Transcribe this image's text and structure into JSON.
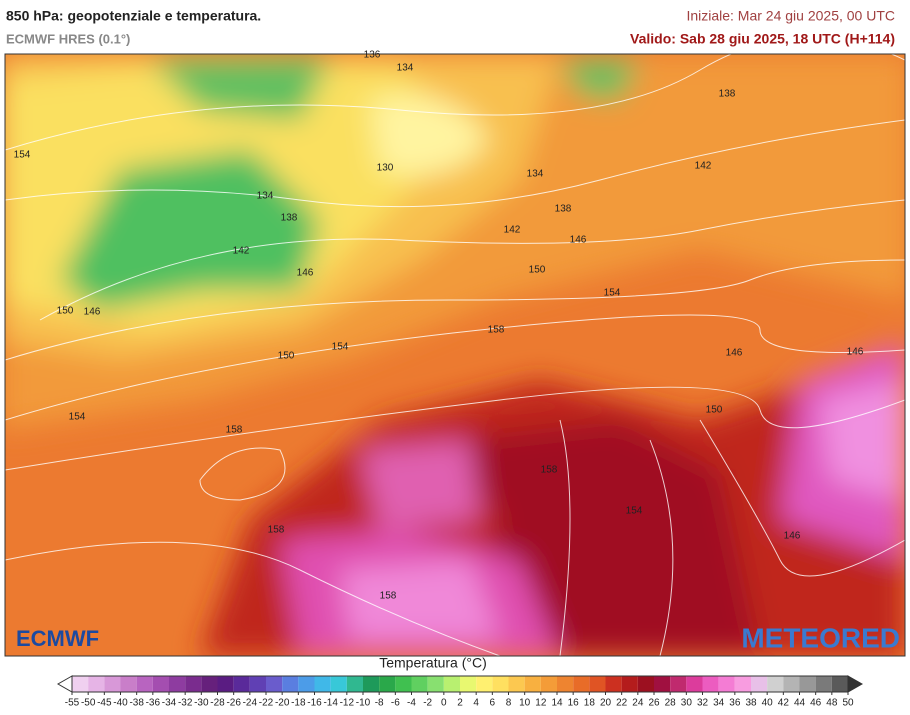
{
  "header": {
    "title": "850 hPa: geopotenziale e temperatura.",
    "model": "ECMWF HRES (0.1°)",
    "init": "Iniziale: Mar 24 giu 2025, 00 UTC",
    "valid": "Valido: Sab 28 giu 2025, 18 UTC (H+114)"
  },
  "map": {
    "contour_labels": [
      136,
      134,
      138,
      154,
      130,
      134,
      142,
      134,
      138,
      138,
      142,
      146,
      142,
      146,
      150,
      154,
      150,
      146,
      158,
      154,
      150,
      146,
      146,
      150,
      154,
      158,
      158,
      154,
      158,
      146,
      158
    ],
    "logo_left": "ECMWF",
    "logo_right": "METEORED"
  },
  "colorbar": {
    "title": "Temperatura (°C)",
    "labels": [
      -55,
      -50,
      -45,
      -40,
      -38,
      -36,
      -34,
      -32,
      -30,
      -28,
      -26,
      -24,
      -22,
      -20,
      -18,
      -16,
      -14,
      -12,
      -10,
      -8,
      -6,
      -4,
      -2,
      0,
      2,
      4,
      6,
      8,
      10,
      12,
      14,
      16,
      18,
      20,
      22,
      24,
      26,
      28,
      30,
      32,
      34,
      36,
      38,
      40,
      42,
      44,
      46,
      48,
      50
    ],
    "under_color": "#ffffff",
    "over_color": "#333333",
    "colors": [
      "#f0d0f0",
      "#e6b4e6",
      "#d898d8",
      "#c97ec9",
      "#b864c0",
      "#a44eb0",
      "#8e3ca0",
      "#7a2c8e",
      "#66207c",
      "#5a1c82",
      "#5a2a9a",
      "#6040b4",
      "#6a5ccc",
      "#5a7ee0",
      "#4c9ce8",
      "#40b8e8",
      "#38c8d8",
      "#30b890",
      "#1e9a5a",
      "#2aa84a",
      "#40c050",
      "#60d060",
      "#88e070",
      "#b8f070",
      "#e8f870",
      "#fff070",
      "#ffe060",
      "#fcc850",
      "#f8b040",
      "#f49c38",
      "#ee8430",
      "#e86c28",
      "#e05424",
      "#cc3020",
      "#b41c1c",
      "#9c1020",
      "#a01040",
      "#c02a6e",
      "#dc3c9c",
      "#ec5cc0",
      "#f47cd4",
      "#f89ce0",
      "#e8c0e8",
      "#d0d0d0",
      "#b4b4b4",
      "#989898",
      "#7a7a7a",
      "#5a5a5a"
    ]
  }
}
